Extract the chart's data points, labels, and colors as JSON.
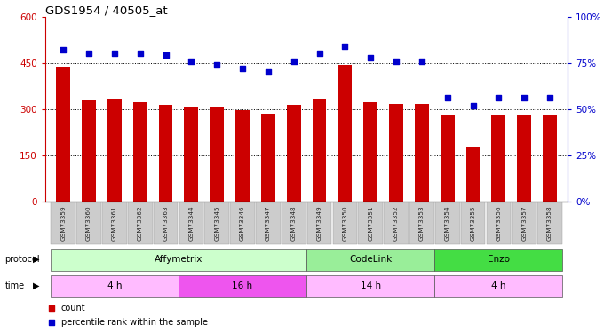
{
  "title": "GDS1954 / 40505_at",
  "samples": [
    "GSM73359",
    "GSM73360",
    "GSM73361",
    "GSM73362",
    "GSM73363",
    "GSM73344",
    "GSM73345",
    "GSM73346",
    "GSM73347",
    "GSM73348",
    "GSM73349",
    "GSM73350",
    "GSM73351",
    "GSM73352",
    "GSM73353",
    "GSM73354",
    "GSM73355",
    "GSM73356",
    "GSM73357",
    "GSM73358"
  ],
  "bar_values": [
    435,
    328,
    330,
    322,
    315,
    308,
    305,
    298,
    285,
    315,
    330,
    443,
    322,
    318,
    317,
    283,
    175,
    283,
    280,
    283
  ],
  "dot_values": [
    82,
    80,
    80,
    80,
    79,
    76,
    74,
    72,
    70,
    76,
    80,
    84,
    78,
    76,
    76,
    56,
    52,
    56,
    56,
    56
  ],
  "bar_color": "#cc0000",
  "dot_color": "#0000cc",
  "ylim_left": [
    0,
    600
  ],
  "ylim_right": [
    0,
    100
  ],
  "yticks_left": [
    0,
    150,
    300,
    450,
    600
  ],
  "yticks_right": [
    0,
    25,
    50,
    75,
    100
  ],
  "ytick_labels_left": [
    "0",
    "150",
    "300",
    "450",
    "600"
  ],
  "ytick_labels_right": [
    "0%",
    "25%",
    "50%",
    "75%",
    "100%"
  ],
  "hlines": [
    150,
    300,
    450
  ],
  "protocol_groups": [
    {
      "label": "Affymetrix",
      "start": 0,
      "end": 9,
      "color": "#ccffcc"
    },
    {
      "label": "CodeLink",
      "start": 10,
      "end": 14,
      "color": "#99ee99"
    },
    {
      "label": "Enzo",
      "start": 15,
      "end": 19,
      "color": "#44dd44"
    }
  ],
  "time_groups": [
    {
      "label": "4 h",
      "start": 0,
      "end": 4,
      "color": "#ffbbff"
    },
    {
      "label": "16 h",
      "start": 5,
      "end": 9,
      "color": "#ee55ee"
    },
    {
      "label": "14 h",
      "start": 10,
      "end": 14,
      "color": "#ffbbff"
    },
    {
      "label": "4 h",
      "start": 15,
      "end": 19,
      "color": "#ffbbff"
    }
  ],
  "legend_items": [
    {
      "label": "count",
      "color": "#cc0000",
      "marker": "s"
    },
    {
      "label": "percentile rank within the sample",
      "color": "#0000cc",
      "marker": "s"
    }
  ],
  "background_color": "#ffffff",
  "left_axis_color": "#cc0000",
  "right_axis_color": "#0000cc"
}
